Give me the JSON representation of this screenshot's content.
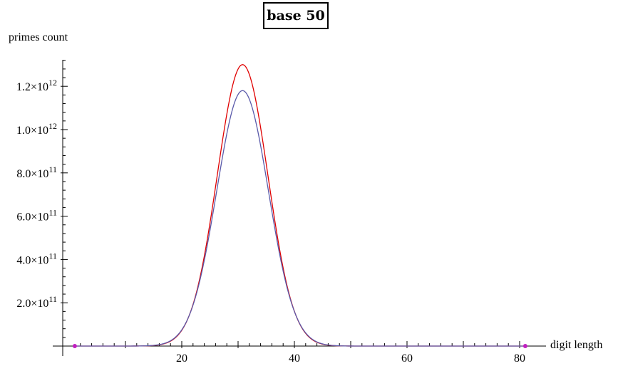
{
  "chart_data": {
    "type": "line",
    "title": "base 50",
    "xlabel": "digit length",
    "ylabel": "primes count",
    "xlim": [
      0,
      81
    ],
    "ylim": [
      0,
      1350000000000.0
    ],
    "x_ticks": [
      20,
      40,
      60,
      80
    ],
    "y_ticks": [
      {
        "value": 200000000000.0,
        "mantissa": "2.0",
        "exponent": "11"
      },
      {
        "value": 400000000000.0,
        "mantissa": "4.0",
        "exponent": "11"
      },
      {
        "value": 600000000000.0,
        "mantissa": "6.0",
        "exponent": "11"
      },
      {
        "value": 800000000000.0,
        "mantissa": "8.0",
        "exponent": "11"
      },
      {
        "value": 1000000000000.0,
        "mantissa": "1.0",
        "exponent": "12"
      },
      {
        "value": 1200000000000.0,
        "mantissa": "1.2",
        "exponent": "12"
      }
    ],
    "grid": false,
    "series": [
      {
        "color": "#e00000",
        "shape": "bell",
        "peak_x": 30.8,
        "peak_y": 1300000000000.0,
        "sigma_x": 4.5,
        "x": [
          0,
          10,
          12,
          14,
          16,
          18,
          20,
          22,
          24,
          26,
          28,
          29,
          30,
          31,
          32,
          33,
          34,
          36,
          38,
          40,
          42,
          44,
          46,
          48,
          50,
          55,
          60,
          70,
          81
        ],
        "y": [
          0,
          100000000.0,
          500000000.0,
          2000000000.0,
          12000000000.0,
          40000000000.0,
          120000000000.0,
          290000000000.0,
          530000000000.0,
          830000000000.0,
          1120000000000.0,
          1210000000000.0,
          1280000000000.0,
          1300000000000.0,
          1270000000000.0,
          1210000000000.0,
          1110000000000.0,
          860000000000.0,
          560000000000.0,
          310000000000.0,
          150000000000.0,
          65000000000.0,
          25000000000.0,
          9000000000.0,
          3000000000.0,
          200000000.0,
          0,
          0,
          0
        ]
      },
      {
        "color": "#5a5aaa",
        "shape": "bell",
        "peak_x": 30.8,
        "peak_y": 1180000000000.0,
        "sigma_x": 4.6,
        "x": [
          0,
          10,
          12,
          14,
          16,
          18,
          20,
          22,
          24,
          26,
          28,
          29,
          30,
          31,
          32,
          33,
          34,
          36,
          38,
          40,
          42,
          44,
          46,
          48,
          50,
          55,
          60,
          70,
          81
        ],
        "y": [
          0,
          100000000.0,
          500000000.0,
          2000000000.0,
          12000000000.0,
          40000000000.0,
          120000000000.0,
          280000000000.0,
          500000000000.0,
          770000000000.0,
          1020000000000.0,
          1100000000000.0,
          1160000000000.0,
          1180000000000.0,
          1160000000000.0,
          1100000000000.0,
          1010000000000.0,
          790000000000.0,
          530000000000.0,
          300000000000.0,
          150000000000.0,
          65000000000.0,
          25000000000.0,
          9000000000.0,
          3000000000.0,
          200000000.0,
          0,
          0,
          0
        ]
      }
    ],
    "markers": [
      {
        "x": 1,
        "y": 0,
        "color": "#c020c0"
      },
      {
        "x": 81,
        "y": 0,
        "color": "#c020c0"
      }
    ]
  }
}
